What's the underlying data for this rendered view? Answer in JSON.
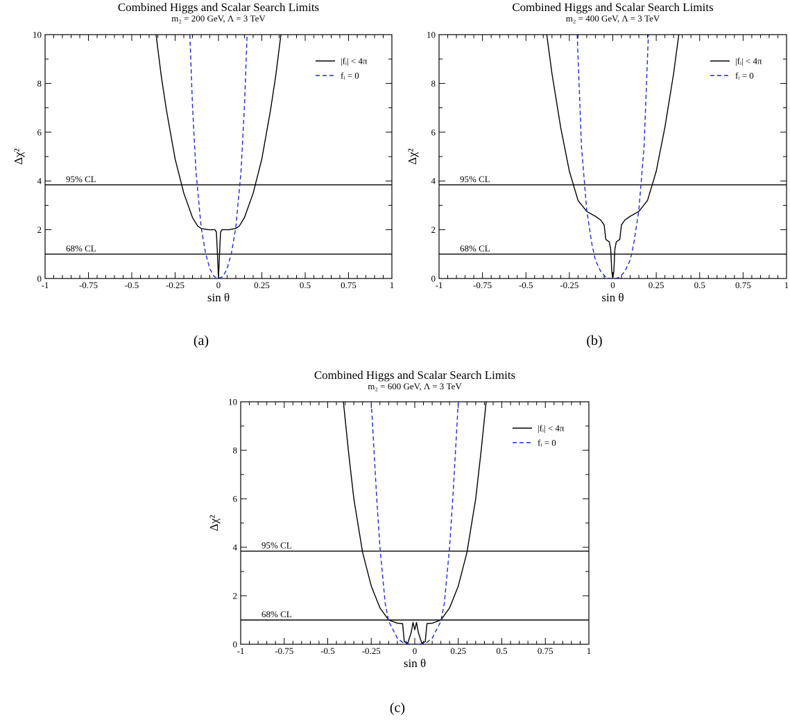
{
  "captions": [
    "(a)",
    "(b)",
    "(c)"
  ],
  "chart_data": [
    {
      "type": "line",
      "title": "Combined Higgs and Scalar Search Limits",
      "subtitle": "m₂ = 200 GeV, Λ = 3 TeV",
      "xlabel": "sin θ",
      "ylabel": "Δχ²",
      "xlim": [
        -1,
        1
      ],
      "ylim": [
        0,
        10
      ],
      "x_ticks": [
        -1,
        -0.75,
        -0.5,
        -0.25,
        0,
        0.25,
        0.5,
        0.75,
        1
      ],
      "x_tick_labels": [
        "-1",
        "-0.75",
        "-0.5",
        "-0.25",
        "0",
        "0.25",
        "0.5",
        "0.75",
        "1"
      ],
      "y_ticks": [
        0,
        2,
        4,
        6,
        8,
        10
      ],
      "y_tick_labels": [
        "0",
        "2",
        "4",
        "6",
        "8",
        "10"
      ],
      "legend_position": "top-right",
      "reference_lines": [
        {
          "label": "95% CL",
          "y": 3.84
        },
        {
          "label": "68% CL",
          "y": 1.0
        }
      ],
      "series": [
        {
          "name": "|fᵢ| < 4π",
          "style": "solid",
          "color": "#000000",
          "x": [
            -0.36,
            -0.33,
            -0.3,
            -0.25,
            -0.2,
            -0.15,
            -0.12,
            -0.1,
            -0.06,
            -0.02,
            -0.012,
            -0.006,
            0,
            0.006,
            0.012,
            0.02,
            0.06,
            0.1,
            0.12,
            0.15,
            0.2,
            0.25,
            0.3,
            0.33,
            0.36
          ],
          "y": [
            10,
            8.3,
            6.9,
            4.9,
            3.5,
            2.5,
            2.15,
            2.05,
            2.0,
            2.0,
            1.9,
            1.0,
            0,
            1.0,
            1.9,
            2.0,
            2.0,
            2.05,
            2.15,
            2.5,
            3.5,
            4.9,
            6.9,
            8.3,
            10
          ]
        },
        {
          "name": "fᵢ = 0",
          "style": "dashed",
          "color": "#1e28d2",
          "x": [
            -0.165,
            -0.15,
            -0.13,
            -0.1,
            -0.075,
            -0.05,
            -0.025,
            0,
            0.025,
            0.05,
            0.075,
            0.1,
            0.13,
            0.15,
            0.165
          ],
          "y": [
            10,
            7.1,
            4.4,
            2.1,
            1.05,
            0.4,
            0.08,
            0,
            0.08,
            0.4,
            1.05,
            2.1,
            4.4,
            7.1,
            10
          ]
        }
      ]
    },
    {
      "type": "line",
      "title": "Combined Higgs and Scalar Search Limits",
      "subtitle": "m₂ = 400 GeV, Λ = 3 TeV",
      "xlabel": "sin θ",
      "ylabel": "Δχ²",
      "xlim": [
        -1,
        1
      ],
      "ylim": [
        0,
        10
      ],
      "x_ticks": [
        -1,
        -0.75,
        -0.5,
        -0.25,
        0,
        0.25,
        0.5,
        0.75,
        1
      ],
      "x_tick_labels": [
        "-1",
        "-0.75",
        "-0.5",
        "-0.25",
        "0",
        "0.25",
        "0.5",
        "0.75",
        "1"
      ],
      "y_ticks": [
        0,
        2,
        4,
        6,
        8,
        10
      ],
      "y_tick_labels": [
        "0",
        "2",
        "4",
        "6",
        "8",
        "10"
      ],
      "legend_position": "top-right",
      "reference_lines": [
        {
          "label": "95% CL",
          "y": 3.84
        },
        {
          "label": "68% CL",
          "y": 1.0
        }
      ],
      "series": [
        {
          "name": "|fᵢ| < 4π",
          "style": "solid",
          "color": "#000000",
          "x": [
            -0.38,
            -0.35,
            -0.3,
            -0.25,
            -0.2,
            -0.15,
            -0.1,
            -0.07,
            -0.05,
            -0.04,
            -0.02,
            -0.012,
            -0.006,
            0,
            0.006,
            0.012,
            0.02,
            0.04,
            0.05,
            0.07,
            0.1,
            0.15,
            0.2,
            0.25,
            0.3,
            0.35,
            0.38
          ],
          "y": [
            10,
            8.4,
            6.2,
            4.4,
            3.2,
            2.75,
            2.55,
            2.4,
            2.2,
            1.6,
            1.5,
            1.2,
            0.3,
            0,
            0.3,
            1.2,
            1.5,
            1.6,
            2.2,
            2.4,
            2.55,
            2.75,
            3.2,
            4.4,
            6.2,
            8.4,
            10
          ]
        },
        {
          "name": "fᵢ = 0",
          "style": "dashed",
          "color": "#1e28d2",
          "x": [
            -0.205,
            -0.18,
            -0.15,
            -0.12,
            -0.1,
            -0.07,
            -0.04,
            -0.02,
            0,
            0.02,
            0.04,
            0.07,
            0.1,
            0.12,
            0.15,
            0.18,
            0.205
          ],
          "y": [
            10,
            5.4,
            2.8,
            1.4,
            0.75,
            0.3,
            0.05,
            0.01,
            0,
            0.01,
            0.05,
            0.3,
            0.75,
            1.4,
            2.8,
            5.4,
            10
          ]
        }
      ]
    },
    {
      "type": "line",
      "title": "Combined Higgs and Scalar Search Limits",
      "subtitle": "m₂ = 600 GeV, Λ = 3 TeV",
      "xlabel": "sin θ",
      "ylabel": "Δχ²",
      "xlim": [
        -1,
        1
      ],
      "ylim": [
        0,
        10
      ],
      "x_ticks": [
        -1,
        -0.75,
        -0.5,
        -0.25,
        0,
        0.25,
        0.5,
        0.75,
        1
      ],
      "x_tick_labels": [
        "-1",
        "-0.75",
        "-0.5",
        "-0.25",
        "0",
        "0.25",
        "0.5",
        "0.75",
        "1"
      ],
      "y_ticks": [
        0,
        2,
        4,
        6,
        8,
        10
      ],
      "y_tick_labels": [
        "0",
        "2",
        "4",
        "6",
        "8",
        "10"
      ],
      "legend_position": "top-right",
      "reference_lines": [
        {
          "label": "95% CL",
          "y": 3.84
        },
        {
          "label": "68% CL",
          "y": 1.0
        }
      ],
      "series": [
        {
          "name": "|fᵢ| < 4π",
          "style": "solid",
          "color": "#000000",
          "x": [
            -0.41,
            -0.38,
            -0.35,
            -0.3,
            -0.25,
            -0.2,
            -0.15,
            -0.1,
            -0.07,
            -0.06,
            -0.04,
            -0.02,
            -0.01,
            0,
            0.01,
            0.02,
            0.04,
            0.06,
            0.07,
            0.1,
            0.15,
            0.2,
            0.25,
            0.3,
            0.35,
            0.38,
            0.41
          ],
          "y": [
            10,
            7.9,
            6.0,
            3.8,
            2.4,
            1.5,
            1.0,
            0.87,
            0.85,
            0.1,
            0.05,
            0.5,
            0.9,
            0.6,
            0.9,
            0.5,
            0.05,
            0.1,
            0.85,
            0.87,
            1.0,
            1.5,
            2.4,
            3.8,
            6.0,
            7.9,
            10
          ]
        },
        {
          "name": "fᵢ = 0",
          "style": "dashed",
          "color": "#1e28d2",
          "x": [
            -0.25,
            -0.22,
            -0.2,
            -0.17,
            -0.15,
            -0.1,
            -0.07,
            -0.04,
            0,
            0.04,
            0.07,
            0.1,
            0.15,
            0.17,
            0.2,
            0.22,
            0.25
          ],
          "y": [
            10,
            6.2,
            4.0,
            1.7,
            0.95,
            0.25,
            0.08,
            0.02,
            0,
            0.02,
            0.08,
            0.25,
            0.95,
            1.7,
            4.0,
            6.2,
            10
          ]
        }
      ]
    }
  ]
}
